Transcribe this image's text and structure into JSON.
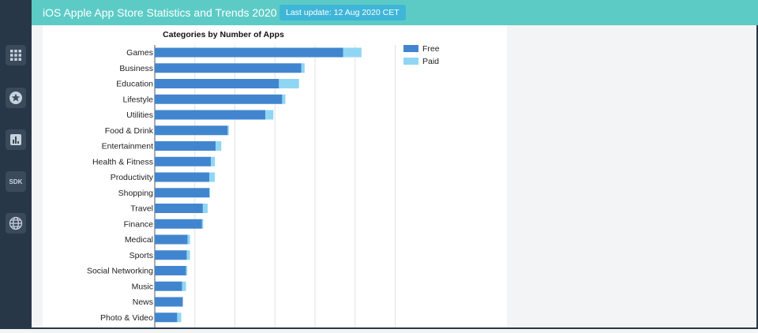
{
  "header": {
    "title": "iOS Apple App Store Statistics and Trends 2020",
    "last_update": "Last update: 12 Aug 2020 CET"
  },
  "sidebar": {
    "items": [
      {
        "name": "apps-grid",
        "icon": "grid-icon"
      },
      {
        "name": "featured",
        "icon": "star-icon"
      },
      {
        "name": "statistics",
        "icon": "bar-chart-icon"
      },
      {
        "name": "sdk",
        "icon": "sdk-icon",
        "label": "SDK"
      },
      {
        "name": "global",
        "icon": "globe-icon"
      }
    ]
  },
  "chart_data": {
    "type": "bar",
    "orientation": "horizontal",
    "stacked": true,
    "title": "Categories by Number of Apps",
    "categories": [
      "Games",
      "Business",
      "Education",
      "Lifestyle",
      "Utilities",
      "Food & Drink",
      "Entertainment",
      "Health & Fitness",
      "Productivity",
      "Shopping",
      "Travel",
      "Finance",
      "Medical",
      "Sports",
      "Social Networking",
      "Music",
      "News",
      "Photo & Video"
    ],
    "series": [
      {
        "name": "Free",
        "color": "#4285cf",
        "values": [
          2350,
          1830,
          1550,
          1590,
          1380,
          910,
          760,
          700,
          680,
          680,
          600,
          590,
          410,
          400,
          390,
          340,
          350,
          280
        ]
      },
      {
        "name": "Paid",
        "color": "#8fd6f4",
        "values": [
          230,
          40,
          250,
          40,
          100,
          15,
          70,
          50,
          70,
          10,
          60,
          15,
          30,
          40,
          15,
          50,
          0,
          50
        ]
      }
    ],
    "legend_position": "top-right",
    "grid": true
  }
}
